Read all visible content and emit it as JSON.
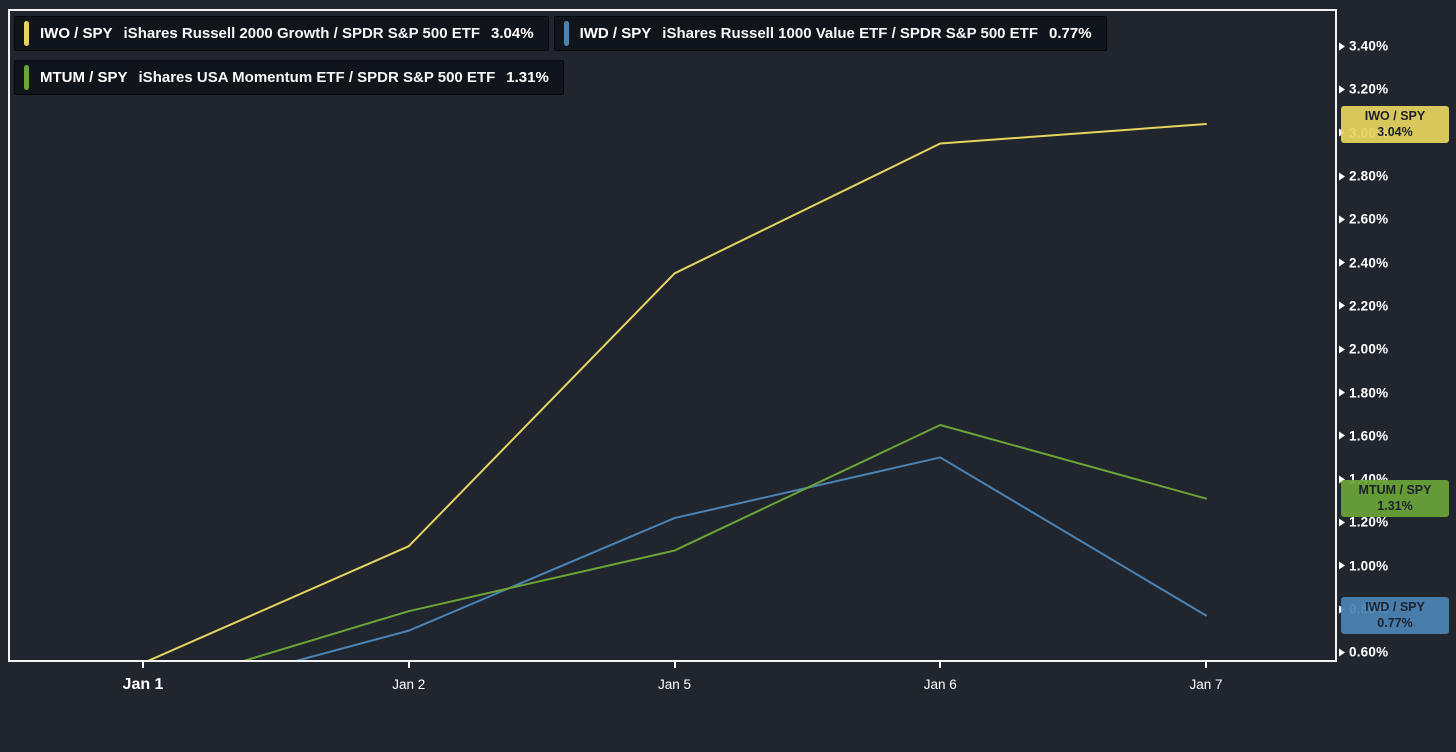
{
  "chart": {
    "background_color": "#20252e",
    "axis_color": "#f2f2f2",
    "text_color": "#ffffff"
  },
  "chart_data": {
    "type": "line",
    "title": "",
    "x": [
      "Jan 1",
      "Jan 2",
      "Jan 5",
      "Jan 6",
      "Jan 7"
    ],
    "series": [
      {
        "name": "IWO / SPY",
        "description": "iShares Russell 2000 Growth / SPDR S&P 500 ETF",
        "value_label": "3.04%",
        "color": "#e6d45f",
        "values": [
          0.55,
          1.09,
          2.35,
          2.95,
          3.04
        ]
      },
      {
        "name": "IWD / SPY",
        "description": "iShares Russell 1000 Value ETF / SPDR S&P 500 ETF",
        "value_label": "0.77%",
        "color": "#4a83b5",
        "values": [
          0.37,
          0.7,
          1.22,
          1.5,
          0.77
        ]
      },
      {
        "name": "MTUM / SPY",
        "description": "iShares USA Momentum ETF / SPDR S&P 500 ETF",
        "value_label": "1.31%",
        "color": "#6ba437",
        "values": [
          0.42,
          0.79,
          1.07,
          1.65,
          1.31
        ]
      }
    ],
    "y_ticks": [
      "3.40%",
      "3.20%",
      "3.00%",
      "2.80%",
      "2.60%",
      "2.40%",
      "2.20%",
      "2.00%",
      "1.80%",
      "1.60%",
      "1.40%",
      "1.20%",
      "1.00%",
      "0.80%",
      "0.60%"
    ],
    "ylim": [
      0.555,
      3.57
    ],
    "y_tick_step": "0.20%",
    "grid": false,
    "legend_position": "top-left",
    "axis_side": "right"
  },
  "badges": [
    {
      "series_index": 0,
      "name": "IWO / SPY",
      "value": "3.04%"
    },
    {
      "series_index": 2,
      "name": "MTUM / SPY",
      "value": "1.31%"
    },
    {
      "series_index": 1,
      "name": "IWD / SPY",
      "value": "0.77%"
    }
  ]
}
